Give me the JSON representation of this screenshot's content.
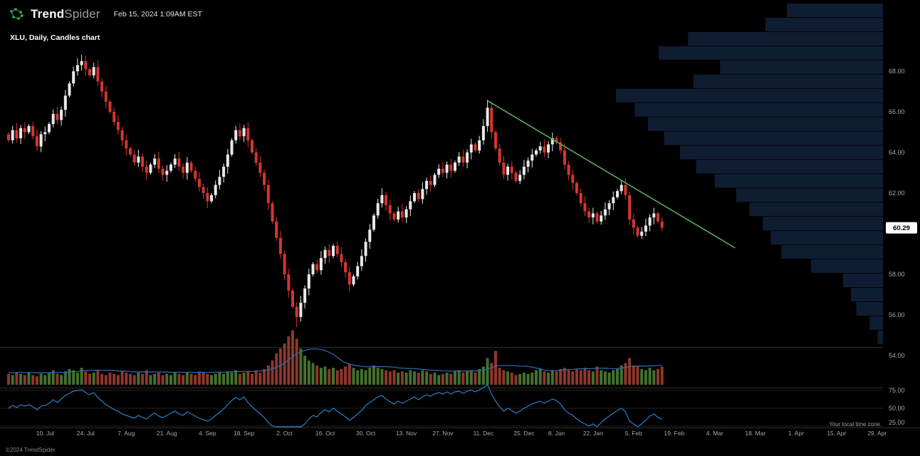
{
  "header": {
    "brand_bold": "Trend",
    "brand_light": "Spider",
    "timestamp": "Feb 15, 2024 1:09AM EST"
  },
  "chart_title": "XLU, Daily, Candles chart",
  "footer": {
    "copyright": "©2024 TrendSpider",
    "timezone_note": "Your local time zone"
  },
  "colors": {
    "background": "#000000",
    "candle_up": "#e9e9e9",
    "candle_down": "#d6352f",
    "trendline": "#5aa85a",
    "volume_up": "#45702f",
    "volume_down": "#8e372c",
    "volume_ma": "#2d6fb8",
    "oscillator": "#2d7fc1",
    "profile": "#0f1d33",
    "axis_text": "#a8a8a8",
    "grid": "#242424",
    "divider": "#2e2e2e",
    "badge_bg": "#ffffff",
    "badge_text": "#000000",
    "brand_green": "#35b54a"
  },
  "chart_data": {
    "type": "candlestick",
    "symbol": "XLU",
    "timeframe": "Daily",
    "title": "XLU, Daily, Candles chart",
    "last_price": "60.29",
    "last_price_value": 60.29,
    "ylim": [
      52.6,
      71.5
    ],
    "y_ticks": [
      68,
      66,
      64,
      62,
      58,
      56,
      54
    ],
    "x_ticks": [
      {
        "label": "10. Jul",
        "i": 9
      },
      {
        "label": "24. Jul",
        "i": 19
      },
      {
        "label": "7. Aug",
        "i": 29
      },
      {
        "label": "21. Aug",
        "i": 39
      },
      {
        "label": "4. Sep",
        "i": 49
      },
      {
        "label": "18. Sep",
        "i": 58
      },
      {
        "label": "2. Oct",
        "i": 68
      },
      {
        "label": "16. Oct",
        "i": 78
      },
      {
        "label": "30. Oct",
        "i": 88
      },
      {
        "label": "13. Nov",
        "i": 98
      },
      {
        "label": "27. Nov",
        "i": 107
      },
      {
        "label": "11. Dec",
        "i": 117
      },
      {
        "label": "25. Dec",
        "i": 127
      },
      {
        "label": "8. Jan",
        "i": 135
      },
      {
        "label": "22. Jan",
        "i": 144
      },
      {
        "label": "5. Feb",
        "i": 154
      },
      {
        "label": "19. Feb",
        "i": 164
      },
      {
        "label": "4. Mar",
        "i": 174
      },
      {
        "label": "18. Mar",
        "i": 184
      },
      {
        "label": "1. Apr",
        "i": 194
      },
      {
        "label": "15. Apr",
        "i": 204
      },
      {
        "label": "29. Apr",
        "i": 214
      }
    ],
    "closes": [
      64.6,
      65.1,
      64.7,
      65.2,
      65.0,
      65.3,
      64.8,
      64.3,
      64.9,
      65.0,
      65.4,
      65.9,
      65.6,
      66.1,
      66.8,
      67.4,
      68.0,
      68.3,
      68.5,
      68.1,
      67.8,
      68.2,
      67.5,
      67.0,
      66.5,
      66.0,
      65.5,
      65.1,
      64.6,
      64.2,
      63.9,
      63.5,
      63.8,
      63.3,
      63.0,
      63.4,
      63.7,
      63.2,
      62.9,
      63.1,
      63.4,
      63.7,
      63.3,
      63.0,
      63.5,
      63.1,
      62.7,
      62.3,
      62.0,
      61.6,
      61.9,
      62.4,
      62.8,
      63.3,
      63.9,
      64.6,
      65.1,
      64.8,
      65.2,
      64.6,
      64.0,
      63.5,
      63.0,
      62.4,
      61.5,
      60.6,
      59.8,
      59.0,
      58.0,
      57.2,
      56.4,
      55.9,
      56.6,
      57.3,
      58.0,
      58.5,
      58.2,
      58.8,
      59.2,
      58.9,
      59.4,
      59.0,
      58.6,
      58.1,
      57.5,
      57.9,
      58.4,
      58.9,
      59.6,
      60.2,
      60.9,
      61.5,
      61.9,
      61.4,
      61.0,
      60.7,
      61.1,
      60.8,
      61.2,
      61.6,
      62.0,
      61.7,
      62.2,
      62.6,
      62.4,
      62.9,
      63.2,
      63.0,
      63.4,
      63.1,
      63.5,
      63.8,
      63.5,
      64.0,
      64.4,
      64.1,
      64.6,
      65.3,
      66.2,
      65.0,
      64.2,
      63.5,
      62.9,
      63.3,
      63.0,
      62.6,
      62.9,
      63.3,
      63.6,
      63.9,
      64.1,
      64.3,
      64.0,
      64.4,
      64.7,
      64.5,
      64.1,
      63.4,
      62.9,
      62.5,
      62.0,
      61.5,
      61.1,
      60.8,
      61.0,
      60.6,
      60.9,
      61.2,
      61.5,
      61.8,
      62.1,
      62.4,
      61.9,
      60.7,
      60.3,
      59.9,
      60.1,
      60.4,
      60.8,
      61.0,
      60.6,
      60.29
    ],
    "wick_overrides": [
      [
        18,
        "h",
        68.8
      ],
      [
        71,
        "l",
        55.4
      ],
      [
        118,
        "h",
        66.6
      ]
    ],
    "volumes": [
      9,
      8,
      10,
      9,
      8,
      10,
      8,
      7,
      9,
      8,
      10,
      12,
      9,
      8,
      11,
      13,
      12,
      10,
      14,
      11,
      9,
      10,
      12,
      9,
      8,
      10,
      9,
      8,
      11,
      10,
      9,
      8,
      10,
      9,
      12,
      8,
      9,
      10,
      8,
      9,
      8,
      10,
      9,
      8,
      10,
      9,
      8,
      11,
      10,
      9,
      8,
      9,
      10,
      9,
      11,
      10,
      12,
      9,
      10,
      11,
      9,
      12,
      10,
      13,
      16,
      20,
      26,
      30,
      34,
      40,
      45,
      38,
      30,
      24,
      20,
      18,
      16,
      14,
      15,
      13,
      14,
      12,
      13,
      15,
      17,
      14,
      12,
      13,
      12,
      14,
      16,
      14,
      13,
      12,
      11,
      12,
      10,
      11,
      10,
      12,
      11,
      10,
      12,
      11,
      9,
      10,
      8,
      9,
      10,
      9,
      11,
      12,
      10,
      11,
      12,
      10,
      13,
      15,
      22,
      18,
      28,
      14,
      12,
      11,
      10,
      8,
      9,
      10,
      9,
      10,
      12,
      13,
      11,
      10,
      12,
      11,
      13,
      14,
      12,
      11,
      13,
      12,
      14,
      12,
      11,
      15,
      12,
      11,
      10,
      12,
      13,
      16,
      18,
      22,
      16,
      15,
      13,
      12,
      14,
      12,
      13,
      15
    ],
    "oscillator": {
      "scale_labels": [
        75,
        50,
        25
      ],
      "values": [
        50,
        54,
        51,
        55,
        53,
        55,
        52,
        48,
        53,
        54,
        57,
        62,
        58,
        63,
        68,
        71,
        74,
        75,
        76,
        72,
        69,
        72,
        65,
        60,
        55,
        52,
        48,
        46,
        42,
        40,
        38,
        36,
        40,
        37,
        35,
        40,
        43,
        39,
        37,
        40,
        43,
        46,
        42,
        40,
        45,
        42,
        39,
        36,
        34,
        32,
        35,
        40,
        44,
        49,
        55,
        61,
        65,
        62,
        66,
        58,
        52,
        47,
        42,
        37,
        30,
        25,
        21,
        18,
        15,
        13,
        12,
        11,
        20,
        28,
        35,
        40,
        38,
        44,
        48,
        45,
        50,
        46,
        42,
        38,
        33,
        37,
        42,
        47,
        54,
        58,
        62,
        66,
        68,
        63,
        59,
        56,
        60,
        57,
        60,
        63,
        66,
        62,
        66,
        69,
        67,
        70,
        72,
        70,
        73,
        70,
        73,
        74,
        71,
        74,
        76,
        73,
        76,
        79,
        84,
        70,
        60,
        52,
        46,
        50,
        47,
        43,
        46,
        50,
        53,
        56,
        58,
        60,
        57,
        60,
        63,
        61,
        56,
        48,
        43,
        40,
        35,
        31,
        28,
        25,
        28,
        24,
        30,
        35,
        39,
        43,
        47,
        50,
        45,
        32,
        28,
        24,
        28,
        33,
        39,
        42,
        37,
        35
      ]
    },
    "trendline": {
      "from_index": 118,
      "from_price": 66.55,
      "to_index": 179,
      "to_price": 59.3
    },
    "volume_profile": [
      [
        71.0,
        36
      ],
      [
        70.3,
        44
      ],
      [
        69.6,
        73
      ],
      [
        68.9,
        84
      ],
      [
        68.2,
        61
      ],
      [
        67.5,
        71
      ],
      [
        66.8,
        100
      ],
      [
        66.1,
        93
      ],
      [
        65.4,
        88
      ],
      [
        64.7,
        82
      ],
      [
        64.0,
        76
      ],
      [
        63.3,
        70
      ],
      [
        62.6,
        63
      ],
      [
        61.9,
        55
      ],
      [
        61.2,
        50
      ],
      [
        60.5,
        45
      ],
      [
        59.8,
        42
      ],
      [
        59.1,
        38
      ],
      [
        58.4,
        27
      ],
      [
        57.7,
        15
      ],
      [
        57.0,
        12
      ],
      [
        56.3,
        10
      ],
      [
        55.6,
        5
      ],
      [
        54.9,
        2
      ]
    ]
  }
}
